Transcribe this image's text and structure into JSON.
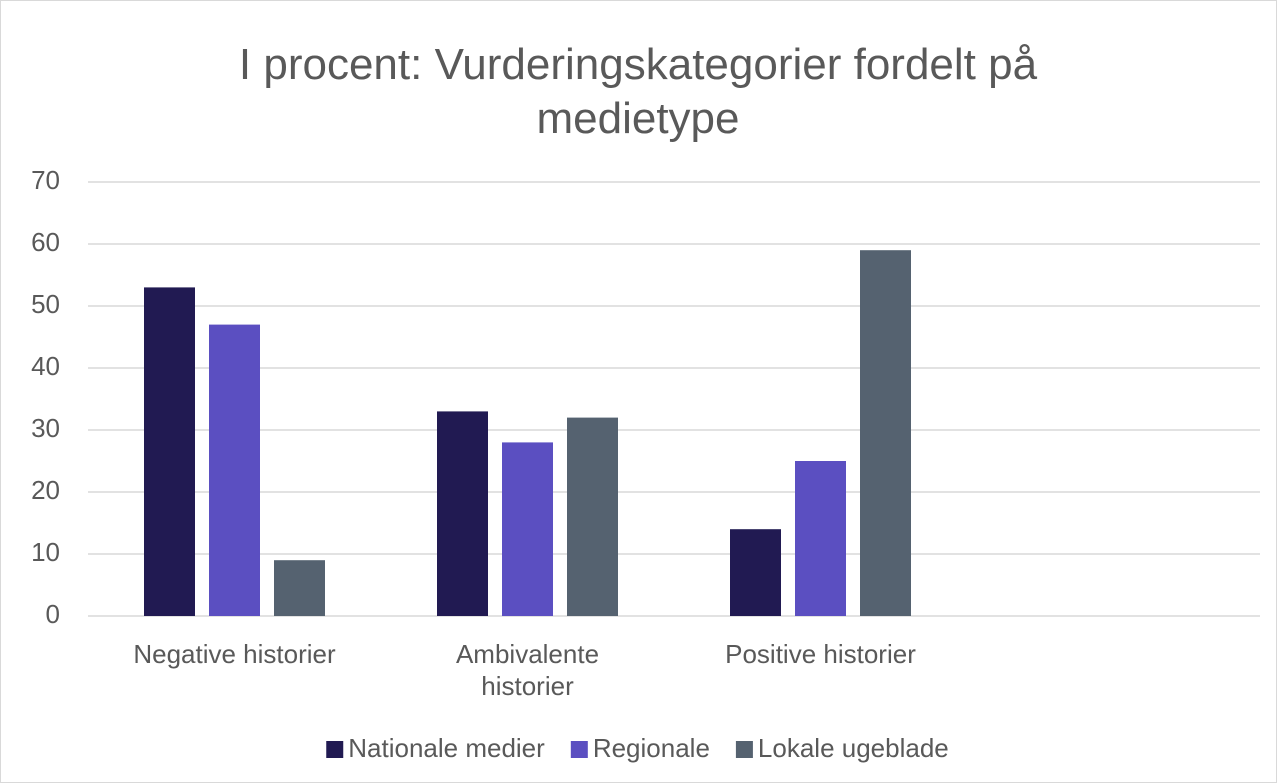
{
  "chart_data": {
    "type": "bar",
    "title": "I procent: Vurderingskategorier fordelt på medietype",
    "categories": [
      "Negative historier",
      "Ambivalente historier",
      "Positive historier",
      null
    ],
    "series": [
      {
        "name": "Nationale medier",
        "color": "#211a52",
        "values": [
          53,
          33,
          14,
          null
        ]
      },
      {
        "name": "Regionale",
        "color": "#5b4fc1",
        "values": [
          47,
          28,
          25,
          null
        ]
      },
      {
        "name": "Lokale ugeblade",
        "color": "#556270",
        "values": [
          9,
          32,
          59,
          null
        ]
      }
    ],
    "ylim": [
      0,
      70
    ],
    "yticks": [
      0,
      10,
      20,
      30,
      40,
      50,
      60,
      70
    ],
    "grid": true,
    "legend": "bottom"
  }
}
